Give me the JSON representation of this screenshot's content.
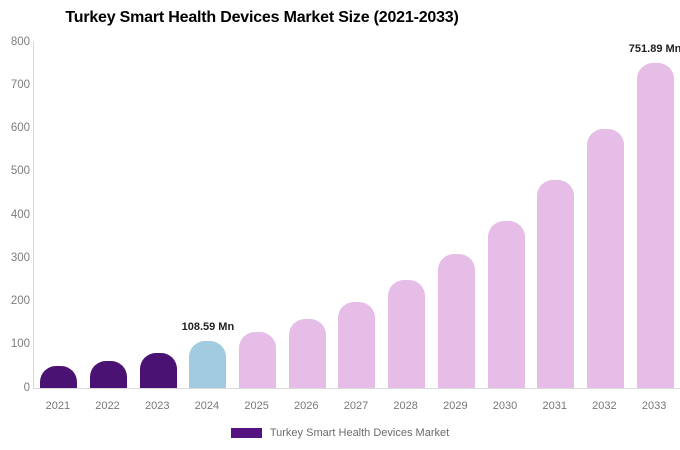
{
  "chart_data": {
    "type": "bar",
    "title": "Turkey Smart Health Devices Market Size (2021-2033)",
    "unit": "Mn",
    "categories": [
      "2021",
      "2022",
      "2023",
      "2024",
      "2025",
      "2026",
      "2027",
      "2028",
      "2029",
      "2030",
      "2031",
      "2032",
      "2033"
    ],
    "values": [
      50,
      63,
      80,
      108.59,
      130,
      160,
      200,
      250,
      310,
      387,
      480,
      600,
      751.89
    ],
    "bar_roles": [
      "historical",
      "historical",
      "historical",
      "current",
      "forecast",
      "forecast",
      "forecast",
      "forecast",
      "forecast",
      "forecast",
      "forecast",
      "forecast",
      "forecast"
    ],
    "annotations": [
      {
        "category": "2024",
        "text": "108.59 Mn"
      },
      {
        "category": "2033",
        "text": "751.89 Mn"
      }
    ],
    "xlabel": "",
    "ylabel": "",
    "ylim": [
      0,
      800
    ],
    "yticks": [
      0,
      100,
      200,
      300,
      400,
      500,
      600,
      700,
      800
    ],
    "grid": false,
    "legend_position": "bottom",
    "colors": {
      "historical": "#4A1272",
      "current": "#A2CBE0",
      "forecast": "#E6BDE6",
      "axis_line": "#d9d9d9",
      "tick_text": "#7d7d7d",
      "annotation_text": "#1f1f1f"
    }
  },
  "legend": {
    "label": "Turkey Smart Health Devices Market",
    "swatch_color": "#541380"
  }
}
